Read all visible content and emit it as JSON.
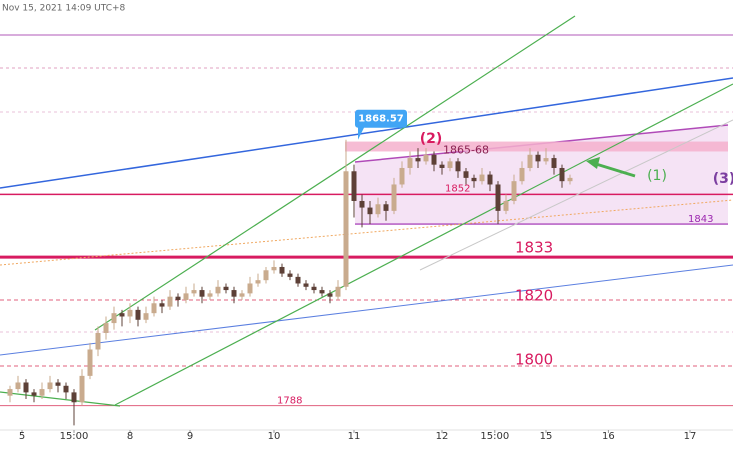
{
  "chart_data": {
    "type": "candlestick",
    "timestamp": "Nov 15, 2021 14:09 UTC+8",
    "ylim": [
      1780.6,
      1910.9
    ],
    "xlim": [
      -1.25,
      90
    ],
    "xticks": [
      {
        "value": 1.5,
        "label": "5"
      },
      {
        "value": 8,
        "label": "15:00"
      },
      {
        "value": 15,
        "label": "8"
      },
      {
        "value": 22.5,
        "label": "9"
      },
      {
        "value": 33,
        "label": "10"
      },
      {
        "value": 43,
        "label": "11"
      },
      {
        "value": 54,
        "label": "12"
      },
      {
        "value": 60.6,
        "label": "15:00"
      },
      {
        "value": 67,
        "label": "15"
      },
      {
        "value": 74.8,
        "label": "16"
      },
      {
        "value": 85,
        "label": "17"
      }
    ],
    "up_color": "#c9ab8e",
    "down_color": "#5d4037",
    "ohlc": [
      [
        1791,
        1794,
        1789,
        1793
      ],
      [
        1793,
        1797,
        1792,
        1795
      ],
      [
        1795,
        1796,
        1790,
        1792
      ],
      [
        1792,
        1793,
        1789,
        1791
      ],
      [
        1791,
        1795,
        1790,
        1793
      ],
      [
        1793,
        1797,
        1792,
        1795
      ],
      [
        1795,
        1796,
        1792,
        1794
      ],
      [
        1794,
        1795,
        1790,
        1792
      ],
      [
        1792,
        1793,
        1782,
        1789
      ],
      [
        1789,
        1799,
        1788,
        1797
      ],
      [
        1797,
        1807,
        1796,
        1805
      ],
      [
        1805,
        1812,
        1803,
        1810
      ],
      [
        1810,
        1815,
        1808,
        1813
      ],
      [
        1813,
        1818,
        1811,
        1816
      ],
      [
        1816,
        1817,
        1812,
        1815
      ],
      [
        1815,
        1819,
        1813,
        1817
      ],
      [
        1817,
        1818,
        1812,
        1814
      ],
      [
        1814,
        1818,
        1813,
        1816
      ],
      [
        1816,
        1821,
        1815,
        1819
      ],
      [
        1819,
        1820,
        1816,
        1818
      ],
      [
        1818,
        1823,
        1817,
        1821
      ],
      [
        1821,
        1822,
        1818,
        1820
      ],
      [
        1820,
        1824,
        1819,
        1822
      ],
      [
        1822,
        1825,
        1821,
        1823
      ],
      [
        1823,
        1824,
        1819,
        1821
      ],
      [
        1821,
        1823,
        1820,
        1822
      ],
      [
        1822,
        1826,
        1821,
        1824
      ],
      [
        1824,
        1825,
        1822,
        1823
      ],
      [
        1823,
        1824,
        1819,
        1821
      ],
      [
        1821,
        1823,
        1820,
        1822
      ],
      [
        1822,
        1827,
        1821,
        1825
      ],
      [
        1825,
        1828,
        1824,
        1826
      ],
      [
        1826,
        1830,
        1825,
        1829
      ],
      [
        1829,
        1832,
        1828,
        1830
      ],
      [
        1830,
        1831,
        1827,
        1828
      ],
      [
        1828,
        1829,
        1826,
        1827
      ],
      [
        1827,
        1828,
        1824,
        1825
      ],
      [
        1825,
        1826,
        1823,
        1824
      ],
      [
        1824,
        1825,
        1822,
        1823
      ],
      [
        1823,
        1824,
        1821,
        1822
      ],
      [
        1822,
        1823,
        1819,
        1821
      ],
      [
        1821,
        1826,
        1820,
        1824
      ],
      [
        1824,
        1868.57,
        1823,
        1859
      ],
      [
        1859,
        1861,
        1845,
        1850
      ],
      [
        1850,
        1852,
        1842,
        1848
      ],
      [
        1848,
        1850,
        1843,
        1846
      ],
      [
        1846,
        1851,
        1845,
        1849
      ],
      [
        1849,
        1850,
        1844,
        1847
      ],
      [
        1847,
        1857,
        1846,
        1855
      ],
      [
        1855,
        1862,
        1854,
        1860
      ],
      [
        1860,
        1865,
        1858,
        1863
      ],
      [
        1863,
        1866,
        1860,
        1862
      ],
      [
        1862,
        1866,
        1861,
        1864
      ],
      [
        1864,
        1865,
        1859,
        1861
      ],
      [
        1861,
        1862,
        1858,
        1860
      ],
      [
        1860,
        1863,
        1859,
        1862
      ],
      [
        1862,
        1863,
        1857,
        1859
      ],
      [
        1859,
        1860,
        1855,
        1857
      ],
      [
        1857,
        1858,
        1854,
        1856
      ],
      [
        1856,
        1860,
        1855,
        1858
      ],
      [
        1858,
        1859,
        1853,
        1855
      ],
      [
        1855,
        1856,
        1843,
        1847
      ],
      [
        1847,
        1852,
        1846,
        1850
      ],
      [
        1850,
        1858,
        1849,
        1856
      ],
      [
        1856,
        1862,
        1855,
        1860
      ],
      [
        1860,
        1866,
        1859,
        1864
      ],
      [
        1864,
        1865,
        1860,
        1862
      ],
      [
        1862,
        1866,
        1861,
        1863
      ],
      [
        1863,
        1864,
        1858,
        1860
      ],
      [
        1860,
        1861,
        1854,
        1856
      ],
      [
        1856,
        1858,
        1855,
        1857
      ]
    ],
    "high_callout": 1868.57,
    "zone": {
      "label": "1865-68",
      "range": [
        1865,
        1868
      ]
    },
    "levels": [
      1852,
      1843,
      1833,
      1820,
      1800,
      1788
    ],
    "wave_labels": [
      "(1)",
      "(2)",
      "(3)"
    ]
  }
}
